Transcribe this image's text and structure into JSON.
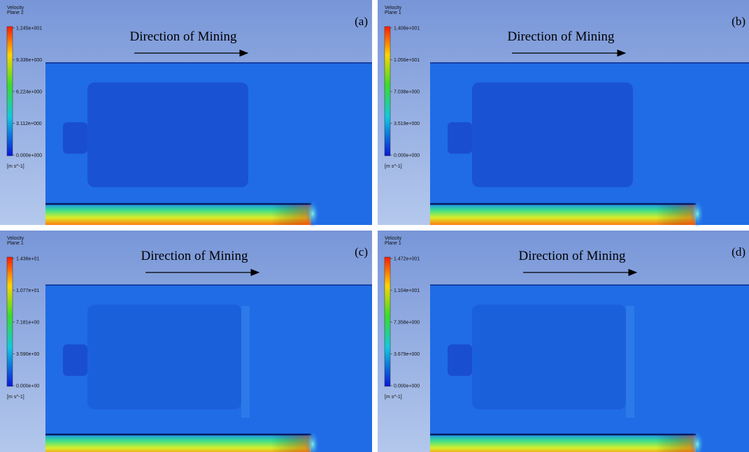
{
  "panels": [
    {
      "label": "(a)",
      "legend": {
        "title": "Velocity",
        "subtitle": "Plane 2",
        "ticks": [
          "1.245e+001",
          "9.336e+000",
          "6.224e+000",
          "3.112e+000",
          "0.000e+000"
        ],
        "unit": "[m s^-1]"
      },
      "annotation": "Direction of Mining"
    },
    {
      "label": "(b)",
      "legend": {
        "title": "Velocity",
        "subtitle": "Plane 1",
        "ticks": [
          "1.408e+001",
          "1.056e+001",
          "7.038e+000",
          "3.519e+000",
          "0.000e+000"
        ],
        "unit": "[m s^-1]"
      },
      "annotation": "Direction of Mining"
    },
    {
      "label": "(c)",
      "legend": {
        "title": "Velocity",
        "subtitle": "Plane 1",
        "ticks": [
          "1.436e+01",
          "1.077e+01",
          "7.181e+00",
          "3.590e+00",
          "0.000e+00"
        ],
        "unit": "[m s^-1]"
      },
      "annotation": "Direction of Mining"
    },
    {
      "label": "(d)",
      "legend": {
        "title": "Velocity",
        "subtitle": "Plane 1",
        "ticks": [
          "1.472e+001",
          "1.104e+001",
          "7.358e+000",
          "3.679e+000",
          "0.000e+000"
        ],
        "unit": "[m s^-1]"
      },
      "annotation": "Direction of Mining"
    }
  ]
}
